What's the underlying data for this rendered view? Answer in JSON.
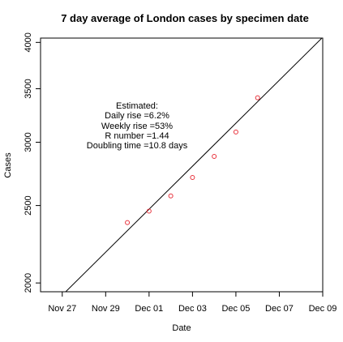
{
  "chart_data": {
    "type": "scatter",
    "title": "7 day average of London cases by specimen date",
    "xlabel": "Date",
    "ylabel": "Cases",
    "y_scale": "log",
    "xlim": [
      "2020-11-26",
      "2020-12-09"
    ],
    "ylim": [
      1950,
      4050
    ],
    "x_ticks": [
      {
        "date": "2020-11-27",
        "label": "Nov 27"
      },
      {
        "date": "2020-11-29",
        "label": "Nov 29"
      },
      {
        "date": "2020-12-01",
        "label": "Dec 01"
      },
      {
        "date": "2020-12-03",
        "label": "Dec 03"
      },
      {
        "date": "2020-12-05",
        "label": "Dec 05"
      },
      {
        "date": "2020-12-07",
        "label": "Dec 07"
      },
      {
        "date": "2020-12-09",
        "label": "Dec 09"
      }
    ],
    "y_ticks": [
      {
        "value": 2000,
        "label": "2000"
      },
      {
        "value": 2500,
        "label": "2500"
      },
      {
        "value": 3000,
        "label": "3000"
      },
      {
        "value": 3500,
        "label": "3500"
      },
      {
        "value": 4000,
        "label": "4000"
      }
    ],
    "points": [
      {
        "x": "2020-11-30",
        "y": 2380
      },
      {
        "x": "2020-12-01",
        "y": 2460
      },
      {
        "x": "2020-12-02",
        "y": 2570
      },
      {
        "x": "2020-12-03",
        "y": 2710
      },
      {
        "x": "2020-12-04",
        "y": 2880
      },
      {
        "x": "2020-12-05",
        "y": 3090
      },
      {
        "x": "2020-12-06",
        "y": 3410
      }
    ],
    "fit_line": [
      {
        "x": "2020-11-26",
        "y": 1815
      },
      {
        "x": "2020-12-09",
        "y": 4060
      }
    ],
    "point_color": "#e8323c",
    "line_color": "#000000",
    "grid": false,
    "annotation": [
      "Estimated:",
      "Daily rise =6.2%",
      "Weekly rise =53%",
      "R number =1.44",
      "Doubling time =10.8 days"
    ]
  }
}
